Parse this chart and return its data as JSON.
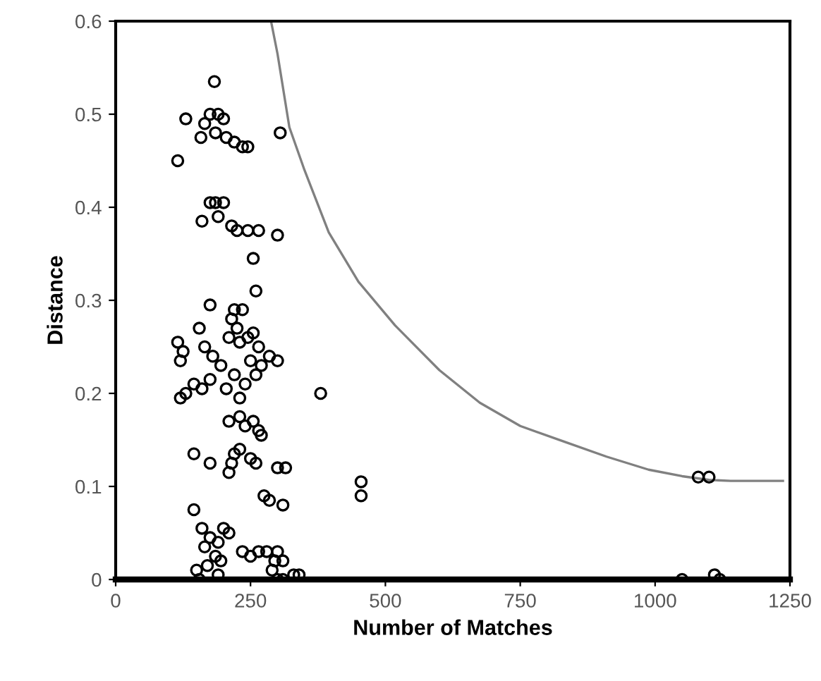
{
  "chart_data": {
    "type": "scatter",
    "xlabel": "Number of Matches",
    "ylabel": "Distance",
    "xlim": [
      0,
      1250
    ],
    "ylim": [
      0,
      0.6
    ],
    "xticks": [
      0,
      250,
      500,
      750,
      1000,
      1250
    ],
    "yticks": [
      0,
      0.1,
      0.2,
      0.3,
      0.4,
      0.5,
      0.6
    ],
    "grid": false,
    "legend": false,
    "series": [
      {
        "type": "scatter",
        "marker": "circle",
        "color": "#000000",
        "x": [
          183,
          130,
          165,
          175,
          190,
          200,
          158,
          185,
          205,
          220,
          235,
          245,
          305,
          115,
          175,
          185,
          200,
          160,
          190,
          215,
          225,
          245,
          265,
          300,
          255,
          260,
          175,
          115,
          125,
          120,
          155,
          165,
          180,
          195,
          215,
          220,
          225,
          235,
          210,
          230,
          245,
          255,
          265,
          250,
          270,
          285,
          300,
          220,
          240,
          260,
          145,
          160,
          175,
          120,
          130,
          205,
          230,
          380,
          210,
          230,
          240,
          255,
          265,
          270,
          215,
          220,
          230,
          250,
          260,
          210,
          145,
          175,
          300,
          315,
          275,
          285,
          310,
          455,
          455,
          145,
          160,
          175,
          190,
          200,
          210,
          165,
          185,
          195,
          150,
          170,
          190,
          155,
          235,
          250,
          265,
          280,
          295,
          290,
          300,
          310,
          300,
          310,
          330,
          340,
          1050,
          1120,
          1110,
          1080,
          1100
        ],
        "values": [
          0.535,
          0.495,
          0.49,
          0.5,
          0.5,
          0.495,
          0.475,
          0.48,
          0.475,
          0.47,
          0.465,
          0.465,
          0.48,
          0.45,
          0.405,
          0.405,
          0.405,
          0.385,
          0.39,
          0.38,
          0.375,
          0.375,
          0.375,
          0.37,
          0.345,
          0.31,
          0.295,
          0.255,
          0.245,
          0.235,
          0.27,
          0.25,
          0.24,
          0.23,
          0.28,
          0.29,
          0.27,
          0.29,
          0.26,
          0.255,
          0.26,
          0.265,
          0.25,
          0.235,
          0.23,
          0.24,
          0.235,
          0.22,
          0.21,
          0.22,
          0.21,
          0.205,
          0.215,
          0.195,
          0.2,
          0.205,
          0.195,
          0.2,
          0.17,
          0.175,
          0.165,
          0.17,
          0.16,
          0.155,
          0.125,
          0.135,
          0.14,
          0.13,
          0.125,
          0.115,
          0.135,
          0.125,
          0.12,
          0.12,
          0.09,
          0.085,
          0.08,
          0.105,
          0.09,
          0.075,
          0.055,
          0.045,
          0.04,
          0.055,
          0.05,
          0.035,
          0.025,
          0.02,
          0.01,
          0.015,
          0.005,
          0.0,
          0.03,
          0.025,
          0.03,
          0.03,
          0.02,
          0.01,
          0.03,
          0.02,
          0.0,
          0.0,
          0.005,
          0.005,
          0.0,
          0.0,
          0.005,
          0.11,
          0.11
        ]
      },
      {
        "type": "line",
        "color": "#808080",
        "line_style": "solid",
        "x": [
          288,
          300,
          322,
          350,
          395,
          450,
          518,
          600,
          675,
          750,
          832,
          910,
          988,
          1050,
          1100,
          1140,
          1237
        ],
        "values": [
          0.6,
          0.565,
          0.486,
          0.44,
          0.373,
          0.32,
          0.273,
          0.225,
          0.19,
          0.165,
          0.148,
          0.132,
          0.118,
          0.111,
          0.107,
          0.106,
          0.106
        ]
      }
    ]
  }
}
